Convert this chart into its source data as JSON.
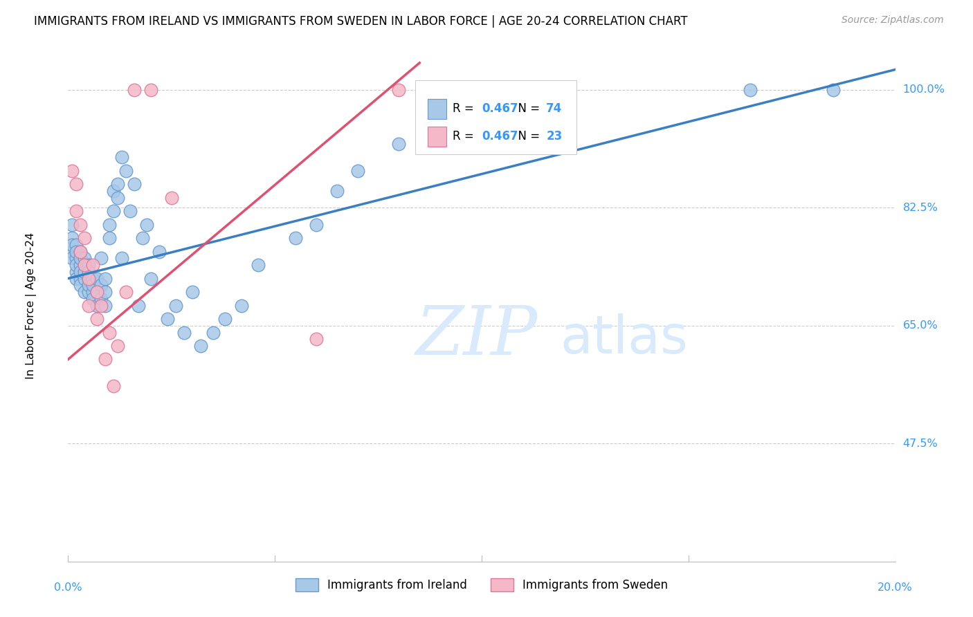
{
  "title": "IMMIGRANTS FROM IRELAND VS IMMIGRANTS FROM SWEDEN IN LABOR FORCE | AGE 20-24 CORRELATION CHART",
  "source": "Source: ZipAtlas.com",
  "xlabel_bottom_left": "0.0%",
  "xlabel_bottom_right": "20.0%",
  "ylabel_label": "In Labor Force | Age 20-24",
  "ytick_labels": [
    "100.0%",
    "82.5%",
    "65.0%",
    "47.5%"
  ],
  "ytick_values": [
    1.0,
    0.825,
    0.65,
    0.475
  ],
  "xmin": 0.0,
  "xmax": 0.2,
  "ymin": 0.3,
  "ymax": 1.06,
  "ireland_color": "#A8C8E8",
  "ireland_edge_color": "#6699CC",
  "sweden_color": "#F4B8C8",
  "sweden_edge_color": "#DD7799",
  "ireland_line_color": "#3A7FC1",
  "sweden_line_color": "#E05070",
  "legend_ireland_label": "Immigrants from Ireland",
  "legend_sweden_label": "Immigrants from Sweden",
  "ireland_R": "0.467",
  "ireland_N": "74",
  "sweden_R": "0.467",
  "sweden_N": "23",
  "watermark_zip": "ZIP",
  "watermark_atlas": "atlas",
  "ireland_line_x0": 0.0,
  "ireland_line_y0": 0.72,
  "ireland_line_x1": 0.2,
  "ireland_line_y1": 1.03,
  "sweden_line_x0": 0.0,
  "sweden_line_y0": 0.6,
  "sweden_line_x1": 0.085,
  "sweden_line_y1": 1.04,
  "ireland_scatter_x": [
    0.001,
    0.001,
    0.001,
    0.001,
    0.001,
    0.002,
    0.002,
    0.002,
    0.002,
    0.002,
    0.002,
    0.003,
    0.003,
    0.003,
    0.003,
    0.003,
    0.003,
    0.004,
    0.004,
    0.004,
    0.004,
    0.004,
    0.005,
    0.005,
    0.005,
    0.005,
    0.005,
    0.006,
    0.006,
    0.006,
    0.006,
    0.007,
    0.007,
    0.007,
    0.008,
    0.008,
    0.008,
    0.009,
    0.009,
    0.009,
    0.01,
    0.01,
    0.011,
    0.011,
    0.012,
    0.012,
    0.013,
    0.013,
    0.014,
    0.015,
    0.016,
    0.017,
    0.018,
    0.019,
    0.02,
    0.022,
    0.024,
    0.026,
    0.028,
    0.03,
    0.032,
    0.035,
    0.038,
    0.042,
    0.046,
    0.055,
    0.06,
    0.065,
    0.07,
    0.08,
    0.09,
    0.11,
    0.165,
    0.185
  ],
  "ireland_scatter_y": [
    0.76,
    0.78,
    0.8,
    0.75,
    0.77,
    0.73,
    0.75,
    0.77,
    0.76,
    0.74,
    0.72,
    0.72,
    0.74,
    0.76,
    0.73,
    0.75,
    0.71,
    0.72,
    0.74,
    0.7,
    0.73,
    0.75,
    0.7,
    0.72,
    0.74,
    0.71,
    0.73,
    0.7,
    0.72,
    0.69,
    0.71,
    0.68,
    0.7,
    0.72,
    0.69,
    0.71,
    0.75,
    0.68,
    0.7,
    0.72,
    0.78,
    0.8,
    0.82,
    0.85,
    0.84,
    0.86,
    0.9,
    0.75,
    0.88,
    0.82,
    0.86,
    0.68,
    0.78,
    0.8,
    0.72,
    0.76,
    0.66,
    0.68,
    0.64,
    0.7,
    0.62,
    0.64,
    0.66,
    0.68,
    0.74,
    0.78,
    0.8,
    0.85,
    0.88,
    0.92,
    0.95,
    1.0,
    1.0,
    1.0
  ],
  "sweden_scatter_x": [
    0.001,
    0.002,
    0.002,
    0.003,
    0.003,
    0.004,
    0.004,
    0.005,
    0.005,
    0.006,
    0.007,
    0.007,
    0.008,
    0.009,
    0.01,
    0.011,
    0.012,
    0.014,
    0.016,
    0.02,
    0.025,
    0.06,
    0.08
  ],
  "sweden_scatter_y": [
    0.88,
    0.82,
    0.86,
    0.76,
    0.8,
    0.78,
    0.74,
    0.72,
    0.68,
    0.74,
    0.7,
    0.66,
    0.68,
    0.6,
    0.64,
    0.56,
    0.62,
    0.7,
    1.0,
    1.0,
    0.84,
    0.63,
    1.0
  ]
}
